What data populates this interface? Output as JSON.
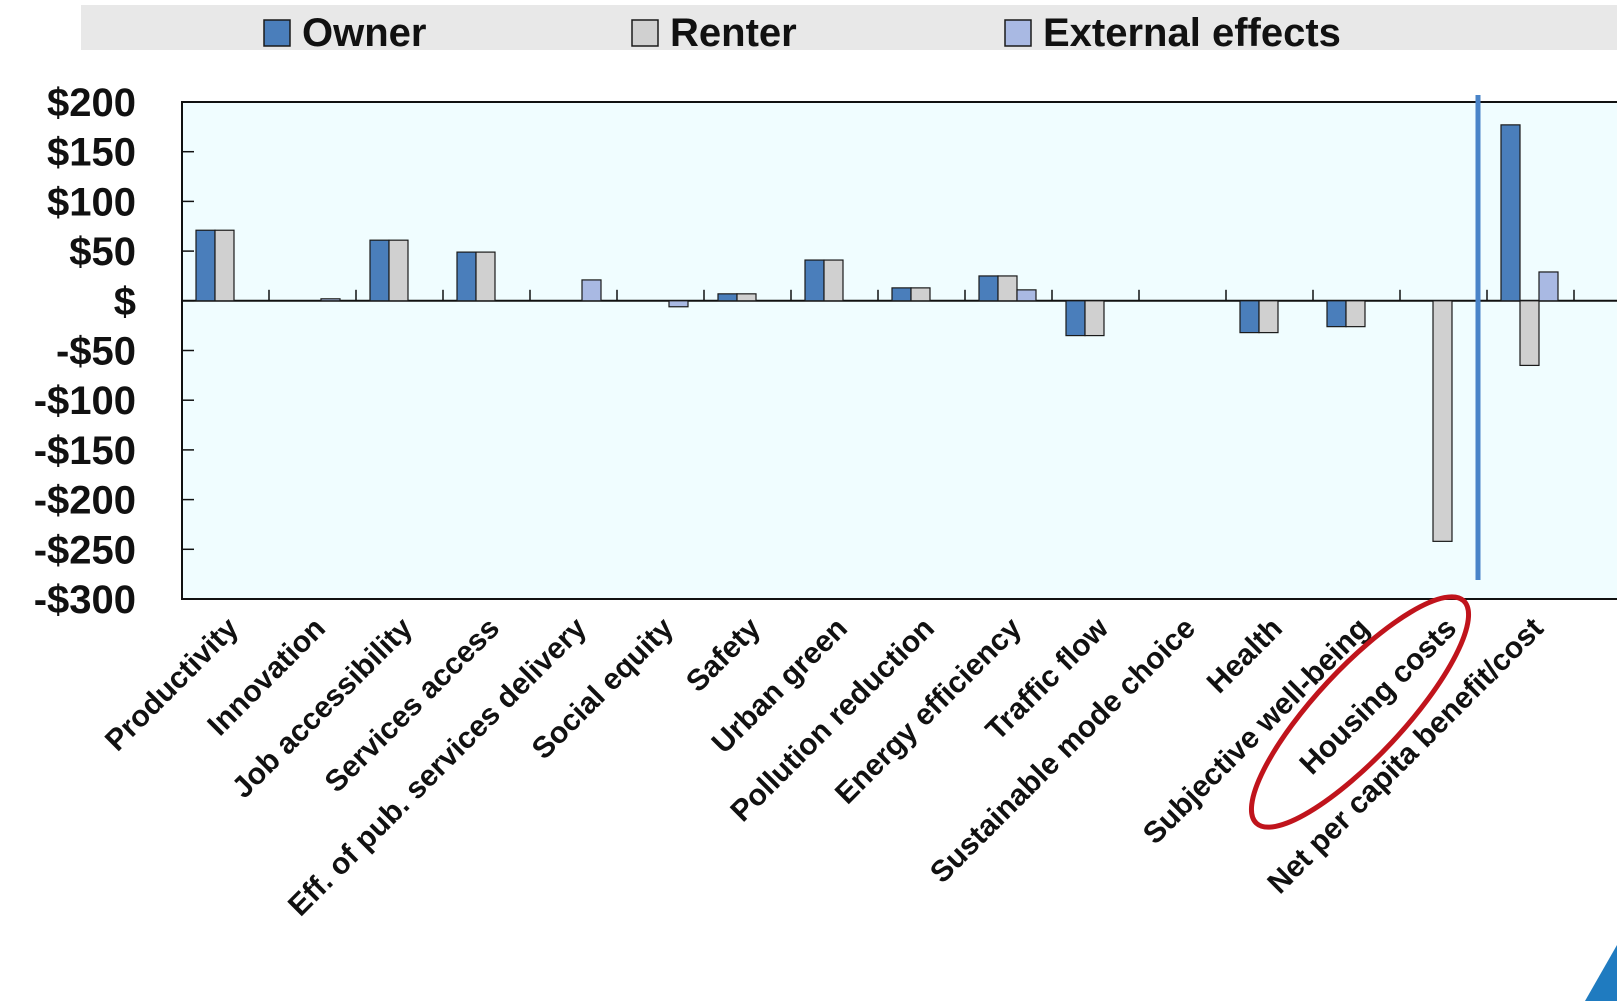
{
  "colors": {
    "owner": "#4A7EBB",
    "renter": "#D0D0D0",
    "external": "#A9B9E3",
    "plot_background": "#F0FDFF",
    "legend_background": "#E8E8E8",
    "divider_line": "#4A84C8",
    "highlight_ellipse": "#C0141C",
    "corner_accent": "#1F7BC0"
  },
  "chart_data": {
    "type": "bar",
    "title": "",
    "xlabel": "",
    "ylabel": "",
    "ylim": [
      -300,
      200
    ],
    "y_ticks": [
      200,
      150,
      100,
      50,
      0,
      -50,
      -100,
      -150,
      -200,
      -250,
      -300
    ],
    "y_tick_labels": [
      "$200",
      "$150",
      "$100",
      "$50",
      "$",
      "-$50",
      "-$100",
      "-$150",
      "-$200",
      "-$250",
      "-$300"
    ],
    "grid": false,
    "legend_position": "top",
    "categories": [
      "Productivity",
      "Innovation",
      "Job accessibility",
      "Services access",
      "Eff. of pub. services delivery",
      "Social equity",
      "Safety",
      "Urban green",
      "Pollution reduction",
      "Energy efficiency",
      "Traffic flow",
      "Sustainable mode choice",
      "Health",
      "Subjective well-being",
      "Housing costs",
      "Net per capita benefit/cost"
    ],
    "series": [
      {
        "name": "Owner",
        "values": [
          71,
          0,
          61,
          49,
          0,
          0,
          7,
          41,
          13,
          25,
          -35,
          0,
          -32,
          -26,
          0,
          177
        ]
      },
      {
        "name": "Renter",
        "values": [
          71,
          0,
          61,
          49,
          0,
          0,
          7,
          41,
          13,
          25,
          -35,
          0,
          -32,
          -26,
          -242,
          -65
        ]
      },
      {
        "name": "External effects",
        "values": [
          0,
          2,
          0,
          0,
          21,
          -6,
          0,
          0,
          0,
          11,
          0,
          0,
          0,
          0,
          0,
          29
        ]
      }
    ],
    "annotations": [
      {
        "type": "ellipse",
        "target_category": "Housing costs"
      },
      {
        "type": "vertical_divider",
        "between": [
          "Housing costs",
          "Net per capita benefit/cost"
        ]
      }
    ]
  }
}
